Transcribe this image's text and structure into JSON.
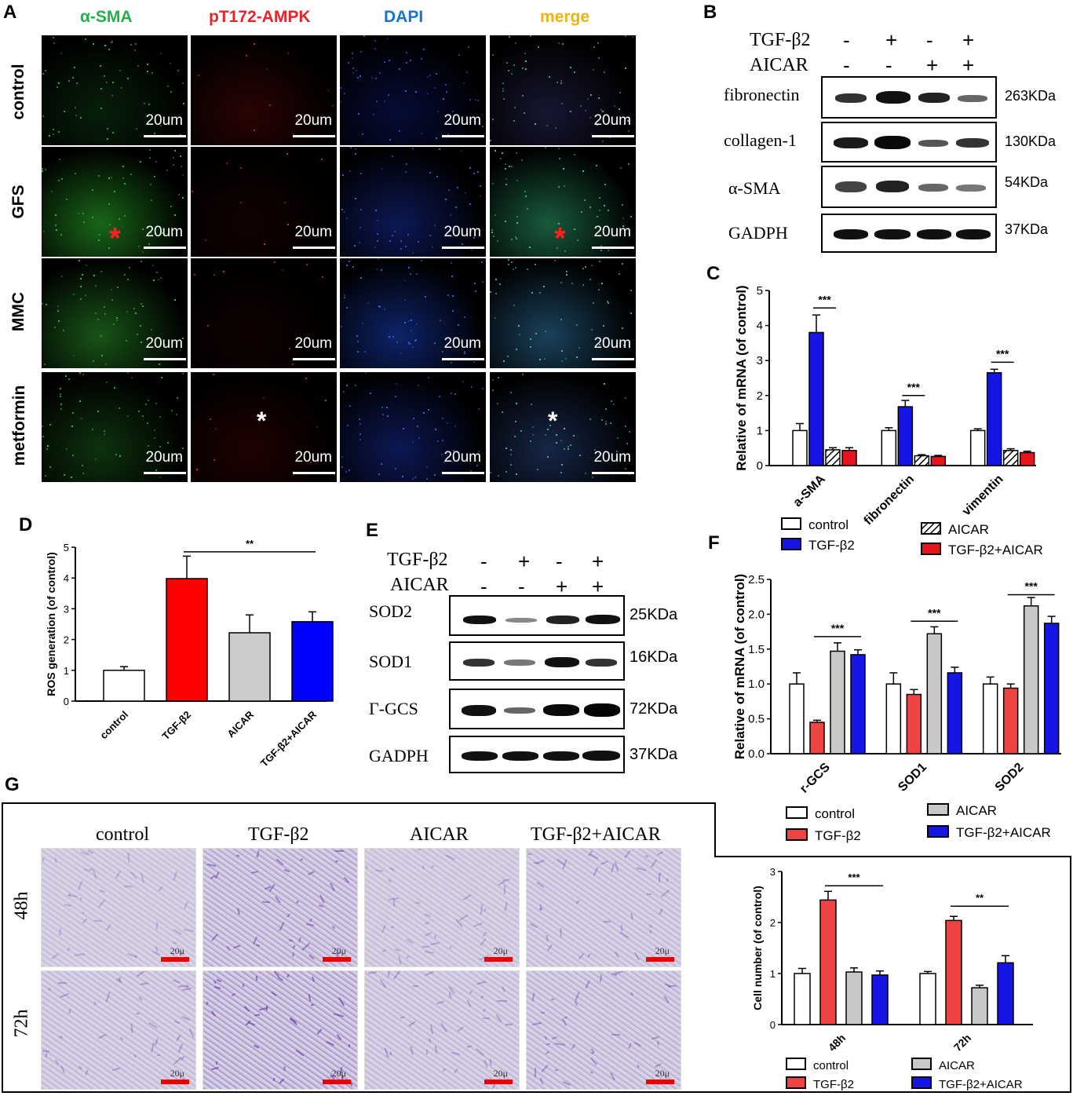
{
  "panels": {
    "A": "A",
    "B": "B",
    "C": "C",
    "D": "D",
    "E": "E",
    "F": "F",
    "G": "G"
  },
  "panelA": {
    "channels": [
      {
        "label": "α-SMA",
        "color": "#22b04a"
      },
      {
        "label": "pT172-AMPK",
        "color": "#e8232a"
      },
      {
        "label": "DAPI",
        "color": "#1c74c9"
      },
      {
        "label": "merge",
        "color": "#f0b20f"
      }
    ],
    "rows": [
      "control",
      "GFS",
      "MMC",
      "metformin"
    ],
    "scale_bar": "20um",
    "marker": "*"
  },
  "panelB": {
    "treatments": [
      {
        "name": "TGF-β2",
        "signs": [
          "-",
          "+",
          "-",
          "+"
        ]
      },
      {
        "name": "AICAR",
        "signs": [
          "-",
          "-",
          "+",
          "+"
        ]
      }
    ],
    "blots": [
      {
        "protein": "fibronectin",
        "kda": "263KDa"
      },
      {
        "protein": "collagen-1",
        "kda": "130KDa"
      },
      {
        "protein": "α-SMA",
        "kda": "54KDa"
      },
      {
        "protein": "GADPH",
        "kda": "37KDa"
      }
    ]
  },
  "panelE": {
    "treatments": [
      {
        "name": "TGF-β2",
        "signs": [
          "-",
          "+",
          "-",
          "+"
        ]
      },
      {
        "name": "AICAR",
        "signs": [
          "-",
          "-",
          "+",
          "+"
        ]
      }
    ],
    "blots": [
      {
        "protein": "SOD2",
        "kda": "25KDa"
      },
      {
        "protein": "SOD1",
        "kda": "16KDa"
      },
      {
        "protein": "Γ-GCS",
        "kda": "72KDa"
      },
      {
        "protein": "GADPH",
        "kda": "37KDa"
      }
    ]
  },
  "panelG": {
    "columns": [
      "control",
      "TGF-β2",
      "AICAR",
      "TGF-β2+AICAR"
    ],
    "rows": [
      "48h",
      "72h"
    ],
    "scale_bar": "20μ"
  },
  "chart_data": [
    {
      "id": "C",
      "type": "bar",
      "ylabel": "Relative of mRNA (of control)",
      "ylim": [
        0,
        5
      ],
      "yticks": [
        "0",
        "1",
        "2",
        "3",
        "4",
        "5"
      ],
      "categories": [
        "a-SMA",
        "fibronectin",
        "vimentin"
      ],
      "series": [
        {
          "name": "control",
          "color": "#ffffff",
          "values": [
            1.0,
            1.0,
            1.0
          ],
          "errors": [
            0.2,
            0.08,
            0.05
          ]
        },
        {
          "name": "TGF-β2",
          "color": "#1515e6",
          "values": [
            3.8,
            1.68,
            2.65
          ],
          "errors": [
            0.5,
            0.18,
            0.1
          ]
        },
        {
          "name": "AICAR",
          "color": "hatch",
          "values": [
            0.45,
            0.28,
            0.43
          ],
          "errors": [
            0.06,
            0.03,
            0.05
          ]
        },
        {
          "name": "TGF-β2+AICAR",
          "color": "#e8141c",
          "values": [
            0.43,
            0.26,
            0.37
          ],
          "errors": [
            0.08,
            0.03,
            0.04
          ]
        }
      ],
      "significance": [
        {
          "label": "***",
          "from": 1,
          "to": 2,
          "group": 0,
          "y": 4.5
        },
        {
          "label": "***",
          "from": 1,
          "to": 2,
          "group": 1,
          "y": 2.0
        },
        {
          "label": "***",
          "from": 1,
          "to": 2,
          "group": 2,
          "y": 2.95
        }
      ]
    },
    {
      "id": "D",
      "type": "bar",
      "ylabel": "ROS generation (of control)",
      "ylim": [
        0,
        5
      ],
      "yticks": [
        "0",
        "1",
        "2",
        "3",
        "4",
        "5"
      ],
      "categories": [
        "control",
        "TGF-β2",
        "AICAR",
        "TGF-β2+AICAR"
      ],
      "values": [
        1.0,
        3.98,
        2.22,
        2.58
      ],
      "errors": [
        0.12,
        0.73,
        0.58,
        0.32
      ],
      "colors": [
        "#ffffff",
        "#ff0000",
        "#cccccc",
        "#0000ff"
      ],
      "significance": [
        {
          "label": "**",
          "from": 1,
          "to": 3,
          "y": 4.85
        }
      ]
    },
    {
      "id": "F",
      "type": "bar",
      "ylabel": "Relative of mRNA (of control)",
      "ylim": [
        0,
        2.5
      ],
      "yticks": [
        "0.0",
        "0.5",
        "1.0",
        "1.5",
        "2.0",
        "2.5"
      ],
      "categories": [
        "r-GCS",
        "SOD1",
        "SOD2"
      ],
      "series": [
        {
          "name": "control",
          "color": "#ffffff",
          "values": [
            1.0,
            1.0,
            1.0
          ],
          "errors": [
            0.16,
            0.16,
            0.1
          ]
        },
        {
          "name": "TGF-β2",
          "color": "#ef4444",
          "values": [
            0.45,
            0.85,
            0.94
          ],
          "errors": [
            0.03,
            0.07,
            0.06
          ]
        },
        {
          "name": "AICAR",
          "color": "#c8c8c8",
          "values": [
            1.47,
            1.72,
            2.12
          ],
          "errors": [
            0.12,
            0.1,
            0.12
          ]
        },
        {
          "name": "TGF-β2+AICAR",
          "color": "#1515e6",
          "values": [
            1.42,
            1.16,
            1.87
          ],
          "errors": [
            0.07,
            0.08,
            0.1
          ]
        }
      ],
      "significance": [
        {
          "label": "***",
          "from": 1,
          "to": 3,
          "group": 0,
          "y": 1.68
        },
        {
          "label": "***",
          "from": 1,
          "to": 3,
          "group": 1,
          "y": 1.9
        },
        {
          "label": "***",
          "from": 1,
          "to": 3,
          "group": 2,
          "y": 2.28
        }
      ]
    },
    {
      "id": "G",
      "type": "bar",
      "ylabel": "Cell number (of control)",
      "ylim": [
        0,
        3
      ],
      "yticks": [
        "0",
        "1",
        "2",
        "3"
      ],
      "categories": [
        "48h",
        "72h"
      ],
      "series": [
        {
          "name": "control",
          "color": "#ffffff",
          "values": [
            1.0,
            1.0
          ],
          "errors": [
            0.1,
            0.04
          ]
        },
        {
          "name": "TGF-β2",
          "color": "#ef4444",
          "values": [
            2.44,
            2.04
          ],
          "errors": [
            0.17,
            0.08
          ]
        },
        {
          "name": "AICAR",
          "color": "#c8c8c8",
          "values": [
            1.03,
            0.72
          ],
          "errors": [
            0.08,
            0.05
          ]
        },
        {
          "name": "TGF-β2+AICAR",
          "color": "#1515e6",
          "values": [
            0.97,
            1.21
          ],
          "errors": [
            0.08,
            0.14
          ]
        }
      ],
      "significance": [
        {
          "label": "***",
          "from": 1,
          "to": 3,
          "group": 0,
          "y": 2.72
        },
        {
          "label": "**",
          "from": 1,
          "to": 3,
          "group": 1,
          "y": 2.32
        }
      ]
    }
  ]
}
